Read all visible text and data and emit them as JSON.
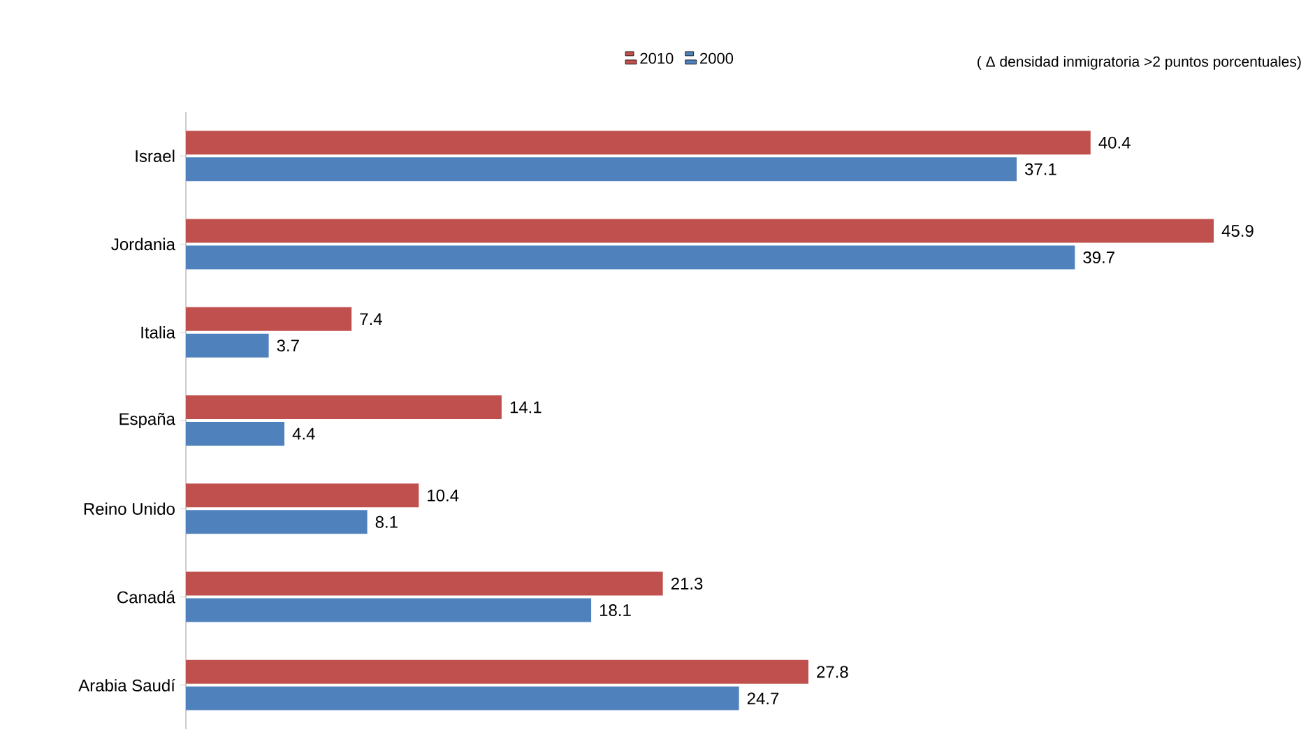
{
  "chart_data": {
    "type": "bar",
    "orientation": "horizontal",
    "categories": [
      "Israel",
      "Jordania",
      "Italia",
      "España",
      "Reino Unido",
      "Canadá",
      "Arabia Saudí"
    ],
    "series": [
      {
        "name": "2010",
        "color": "#c0504d",
        "values": [
          40.4,
          45.9,
          7.4,
          14.1,
          10.4,
          21.3,
          27.8
        ]
      },
      {
        "name": "2000",
        "color": "#4f81bd",
        "values": [
          37.1,
          39.7,
          3.7,
          4.4,
          8.1,
          18.1,
          24.7
        ]
      }
    ],
    "annotations": [
      "( Δ densidad inmigratoria >2 puntos porcentuales)"
    ],
    "data_labels": true,
    "legend": "top",
    "tick_labels": "y"
  }
}
